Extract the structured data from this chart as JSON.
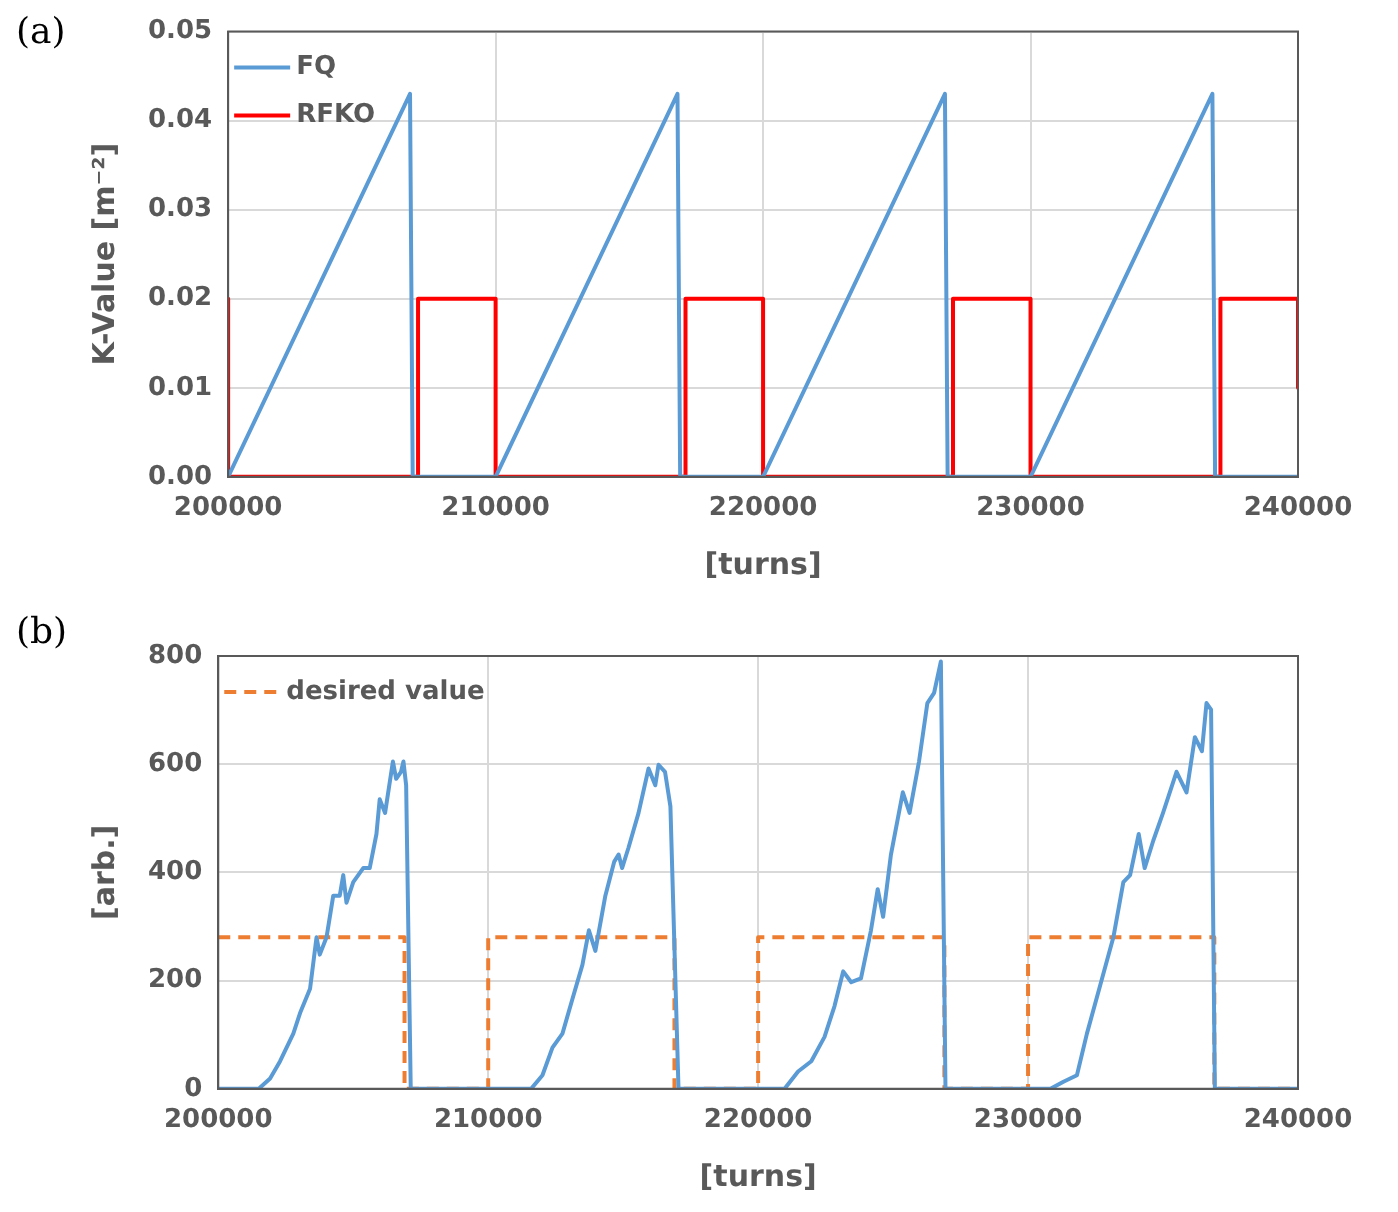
{
  "chart_data": [
    {
      "type": "line",
      "title": "(a)",
      "xlabel": "[turns]",
      "ylabel": "K-Value [m⁻²]",
      "xlim": [
        200000,
        240000
      ],
      "xticks": [
        200000,
        210000,
        220000,
        230000,
        240000
      ],
      "ylim": [
        0,
        0.05
      ],
      "yticks": [
        {
          "value": 0,
          "label": "0.00"
        },
        {
          "value": 0.01,
          "label": "0.01"
        },
        {
          "value": 0.02,
          "label": "0.02"
        },
        {
          "value": 0.03,
          "label": "0.03"
        },
        {
          "value": 0.04,
          "label": "0.04"
        },
        {
          "value": 0.05,
          "label": "0.05"
        }
      ],
      "grid": true,
      "legend": "top left",
      "series": [
        {
          "name": "FQ",
          "color": "#5b9bd5",
          "x": [
            200000,
            206800,
            206900,
            210000,
            216800,
            216900,
            220000,
            226800,
            226900,
            230000,
            236800,
            236900,
            240000
          ],
          "values": [
            0,
            0.043,
            0,
            0,
            0.043,
            0,
            0,
            0.043,
            0,
            0,
            0.043,
            0,
            0
          ]
        },
        {
          "name": "RFKO",
          "color": "#ff0000",
          "x": [
            200000,
            200000,
            207100,
            207100,
            210000,
            210000,
            217100,
            217100,
            220000,
            220000,
            227100,
            227100,
            230000,
            230000,
            237100,
            237100,
            240000,
            240000
          ],
          "values": [
            0.02,
            0,
            0,
            0.02,
            0.02,
            0,
            0,
            0.02,
            0.02,
            0,
            0,
            0.02,
            0.02,
            0,
            0,
            0.02,
            0.02,
            0.01
          ]
        }
      ]
    },
    {
      "type": "line",
      "title": "(b)",
      "xlabel": "[turns]",
      "ylabel": "[arb.]",
      "xlim": [
        200000,
        240000
      ],
      "xticks": [
        200000,
        210000,
        220000,
        230000,
        240000
      ],
      "ylim": [
        0,
        800
      ],
      "yticks": [
        0,
        200,
        400,
        600,
        800
      ],
      "grid": true,
      "legend": "top left",
      "series": [
        {
          "color": "#5b9bd5",
          "x": [
            200000,
            201500,
            201920,
            202290,
            202530,
            202780,
            203030,
            203400,
            203640,
            203760,
            204010,
            204260,
            204500,
            204630,
            204750,
            205000,
            205370,
            205610,
            205860,
            205980,
            206180,
            206470,
            206590,
            206770,
            206860,
            206960,
            207130,
            211590,
            212010,
            212380,
            212750,
            213120,
            213490,
            213730,
            213970,
            214340,
            214670,
            214830,
            214960,
            215200,
            215570,
            215940,
            216190,
            216310,
            216550,
            216750,
            217050,
            220980,
            221480,
            221970,
            222460,
            222830,
            223150,
            223450,
            223810,
            224180,
            224430,
            224630,
            224920,
            225360,
            225610,
            225960,
            226270,
            226520,
            226770,
            226940,
            230830,
            231310,
            231810,
            232180,
            232670,
            233160,
            233530,
            233780,
            234100,
            234320,
            234640,
            235000,
            235500,
            235870,
            236180,
            236440,
            236610,
            236780,
            236920,
            240000
          ],
          "values": [
            0,
            0,
            19,
            51,
            76,
            102,
            140,
            185,
            280,
            248,
            280,
            357,
            357,
            395,
            344,
            382,
            408,
            408,
            471,
            535,
            510,
            605,
            573,
            586,
            605,
            561,
            0,
            0,
            25,
            76,
            102,
            166,
            229,
            293,
            255,
            357,
            420,
            433,
            408,
            446,
            510,
            592,
            561,
            599,
            586,
            522,
            0,
            0,
            32,
            51,
            96,
            153,
            217,
            197,
            204,
            293,
            369,
            318,
            433,
            548,
            510,
            605,
            713,
            732,
            790,
            0,
            0,
            13,
            25,
            102,
            191,
            280,
            382,
            395,
            471,
            408,
            459,
            510,
            586,
            548,
            650,
            624,
            713,
            701,
            0,
            0
          ]
        },
        {
          "name": "desired value",
          "color": "#ed7d31",
          "line_style": "dashed",
          "x": [
            200000,
            206900,
            206900,
            210000,
            210000,
            216900,
            216900,
            220000,
            220000,
            226900,
            226900,
            230000,
            230000,
            236900,
            236900,
            240000
          ],
          "values": [
            280,
            280,
            0,
            0,
            280,
            280,
            0,
            0,
            280,
            280,
            0,
            0,
            280,
            280,
            0,
            0
          ]
        }
      ]
    }
  ]
}
